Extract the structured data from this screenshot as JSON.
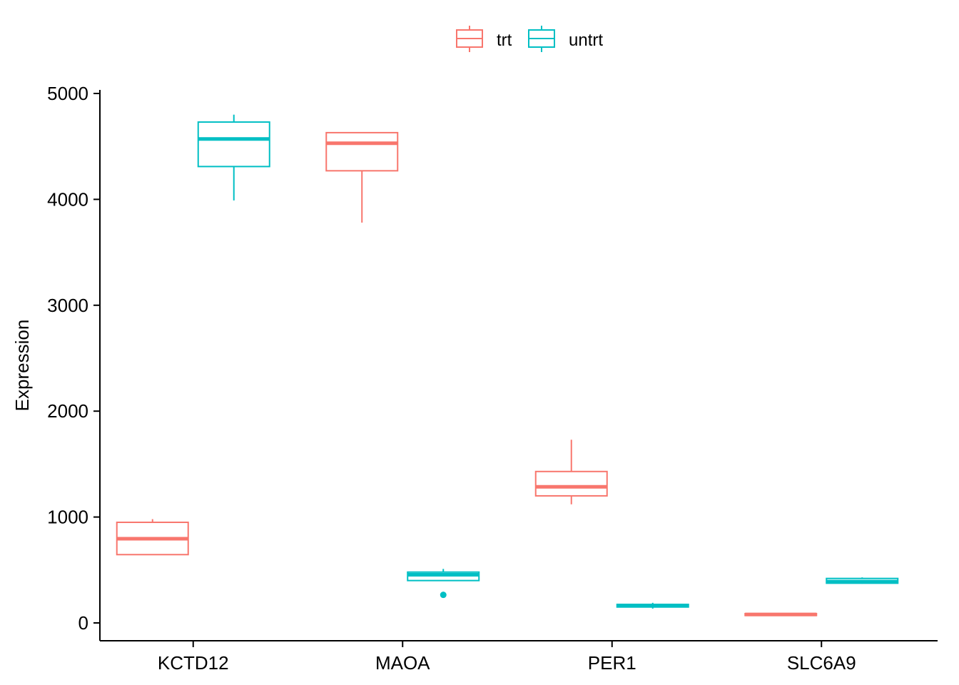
{
  "chart_data": {
    "type": "boxplot",
    "title": "",
    "xlabel": "",
    "ylabel": "Expression",
    "ylim": [
      -170,
      5050
    ],
    "yticks": [
      0,
      1000,
      2000,
      3000,
      4000,
      5000
    ],
    "grid": false,
    "legend_position": "top",
    "categories": [
      "KCTD12",
      "MAOA",
      "PER1",
      "SLC6A9"
    ],
    "series": [
      {
        "name": "trt",
        "color": "#F8766D",
        "boxes": [
          {
            "category": "KCTD12",
            "whisker_low": 645,
            "q1": 645,
            "median": 795,
            "q3": 950,
            "whisker_high": 980,
            "outliers": []
          },
          {
            "category": "MAOA",
            "whisker_low": 3780,
            "q1": 4270,
            "median": 4530,
            "q3": 4630,
            "whisker_high": 4630,
            "outliers": []
          },
          {
            "category": "PER1",
            "whisker_low": 1120,
            "q1": 1200,
            "median": 1285,
            "q3": 1430,
            "whisker_high": 1730,
            "outliers": []
          },
          {
            "category": "SLC6A9",
            "whisker_low": 65,
            "q1": 70,
            "median": 80,
            "q3": 88,
            "whisker_high": 92,
            "outliers": []
          }
        ]
      },
      {
        "name": "untrt",
        "color": "#00BFC4",
        "boxes": [
          {
            "category": "KCTD12",
            "whisker_low": 3990,
            "q1": 4310,
            "median": 4570,
            "q3": 4730,
            "whisker_high": 4800,
            "outliers": []
          },
          {
            "category": "MAOA",
            "whisker_low": 400,
            "q1": 400,
            "median": 455,
            "q3": 480,
            "whisker_high": 510,
            "outliers": [
              265
            ]
          },
          {
            "category": "PER1",
            "whisker_low": 135,
            "q1": 150,
            "median": 165,
            "q3": 175,
            "whisker_high": 190,
            "outliers": []
          },
          {
            "category": "SLC6A9",
            "whisker_low": 370,
            "q1": 375,
            "median": 390,
            "q3": 420,
            "whisker_high": 430,
            "outliers": []
          }
        ]
      }
    ]
  }
}
